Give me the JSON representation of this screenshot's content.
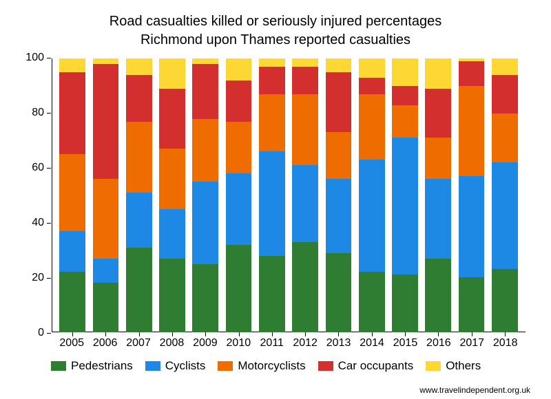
{
  "title": {
    "line1": "Road casualties killed or seriously injured percentages",
    "line2": "Richmond upon Thames reported casualties",
    "fontsize": 20
  },
  "chart": {
    "type": "stacked-bar",
    "ylim": [
      0,
      100
    ],
    "yticks": [
      0,
      20,
      40,
      60,
      80,
      100
    ],
    "ytick_step": 20,
    "background_color": "#ffffff",
    "border_color": "#000000",
    "bar_width": 0.78,
    "categories": [
      "2005",
      "2006",
      "2007",
      "2008",
      "2009",
      "2010",
      "2011",
      "2012",
      "2013",
      "2014",
      "2015",
      "2016",
      "2017",
      "2018"
    ],
    "series": [
      {
        "key": "pedestrians",
        "label": "Pedestrians",
        "color": "#2e7d32"
      },
      {
        "key": "cyclists",
        "label": "Cyclists",
        "color": "#1e88e5"
      },
      {
        "key": "motorcyclists",
        "label": "Motorcyclists",
        "color": "#ef6c00"
      },
      {
        "key": "car_occupants",
        "label": "Car occupants",
        "color": "#d32f2f"
      },
      {
        "key": "others",
        "label": "Others",
        "color": "#fdd835"
      }
    ],
    "data": {
      "2005": {
        "pedestrians": 22,
        "cyclists": 15,
        "motorcyclists": 28,
        "car_occupants": 30,
        "others": 5
      },
      "2006": {
        "pedestrians": 18,
        "cyclists": 9,
        "motorcyclists": 29,
        "car_occupants": 42,
        "others": 2
      },
      "2007": {
        "pedestrians": 31,
        "cyclists": 20,
        "motorcyclists": 26,
        "car_occupants": 17,
        "others": 6
      },
      "2008": {
        "pedestrians": 27,
        "cyclists": 18,
        "motorcyclists": 22,
        "car_occupants": 22,
        "others": 11
      },
      "2009": {
        "pedestrians": 25,
        "cyclists": 30,
        "motorcyclists": 23,
        "car_occupants": 20,
        "others": 2
      },
      "2010": {
        "pedestrians": 32,
        "cyclists": 26,
        "motorcyclists": 19,
        "car_occupants": 15,
        "others": 8
      },
      "2011": {
        "pedestrians": 28,
        "cyclists": 38,
        "motorcyclists": 21,
        "car_occupants": 10,
        "others": 3
      },
      "2012": {
        "pedestrians": 33,
        "cyclists": 28,
        "motorcyclists": 26,
        "car_occupants": 10,
        "others": 3
      },
      "2013": {
        "pedestrians": 29,
        "cyclists": 27,
        "motorcyclists": 17,
        "car_occupants": 22,
        "others": 5
      },
      "2014": {
        "pedestrians": 22,
        "cyclists": 41,
        "motorcyclists": 24,
        "car_occupants": 6,
        "others": 7
      },
      "2015": {
        "pedestrians": 21,
        "cyclists": 50,
        "motorcyclists": 12,
        "car_occupants": 7,
        "others": 10
      },
      "2016": {
        "pedestrians": 27,
        "cyclists": 29,
        "motorcyclists": 15,
        "car_occupants": 18,
        "others": 11
      },
      "2017": {
        "pedestrians": 20,
        "cyclists": 37,
        "motorcyclists": 33,
        "car_occupants": 9,
        "others": 1
      },
      "2018": {
        "pedestrians": 23,
        "cyclists": 39,
        "motorcyclists": 18,
        "car_occupants": 14,
        "others": 6
      }
    },
    "label_fontsize": 16
  },
  "attribution": "www.travelindependent.org.uk"
}
